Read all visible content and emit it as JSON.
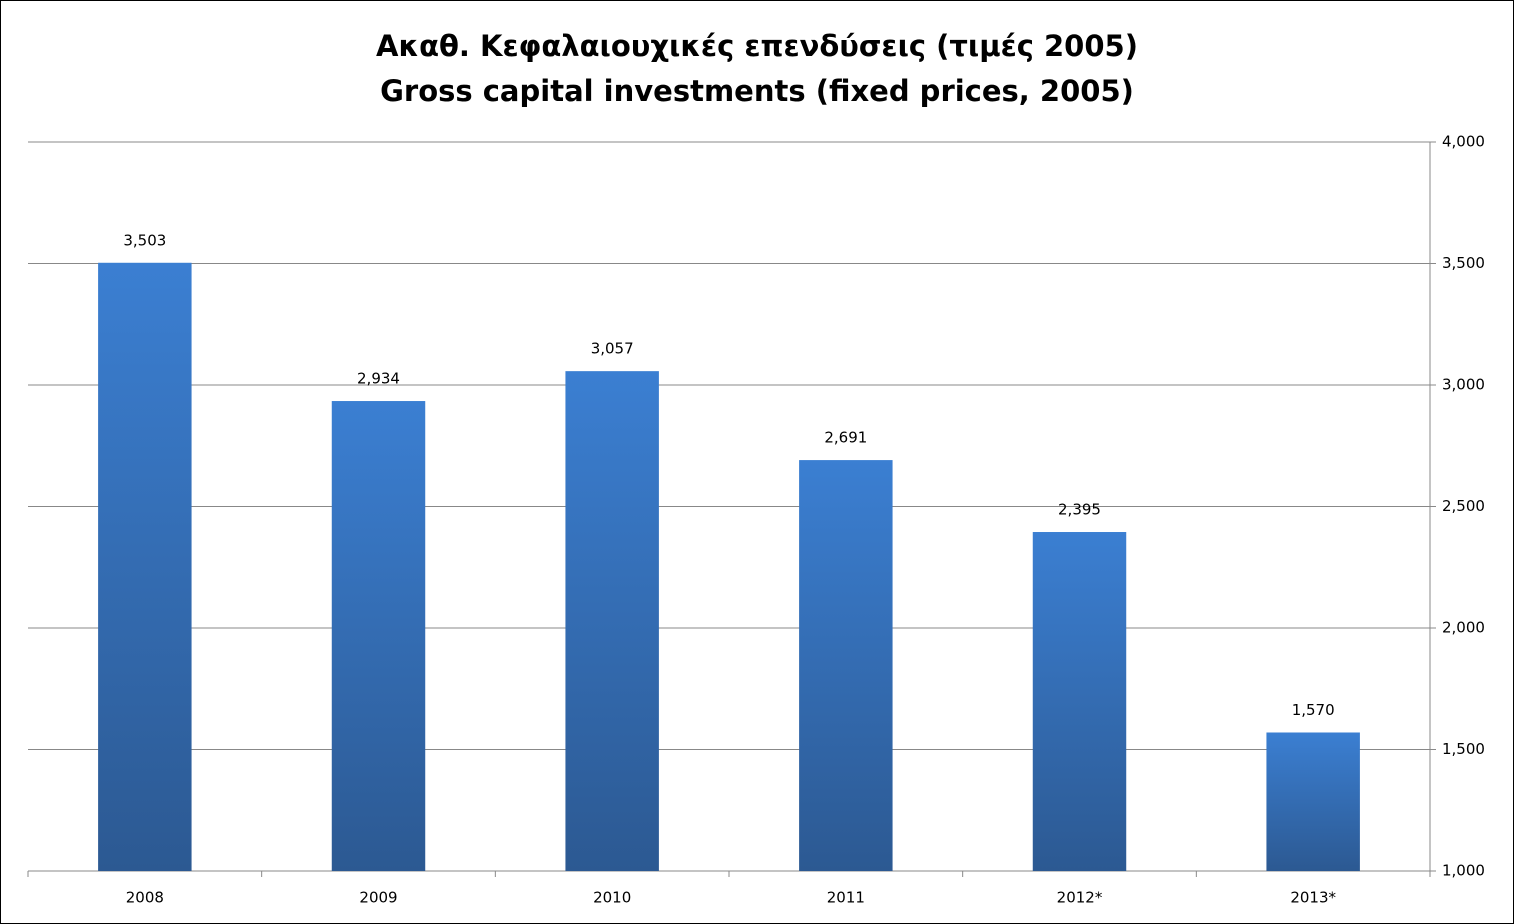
{
  "chart_data": {
    "type": "bar",
    "title": [
      "Ακαθ. Κεφαλαιουχικές επενδύσεις (τιμές 2005)",
      "Gross capital investments (fixed prices, 2005)"
    ],
    "categories": [
      "2008",
      "2009",
      "2010",
      "2011",
      "2012*",
      "2013*"
    ],
    "values": [
      3503,
      2934,
      3057,
      2691,
      2395,
      1570
    ],
    "value_labels": [
      "3,503",
      "2,934",
      "3,057",
      "2,691",
      "2,395",
      "1,570"
    ],
    "color": "#3b7fd2",
    "ylim": [
      1000,
      4000
    ],
    "yticks": [
      {
        "value": 1000,
        "label": "1,000"
      },
      {
        "value": 1500,
        "label": "1,500"
      },
      {
        "value": 2000,
        "label": "2,000"
      },
      {
        "value": 2500,
        "label": "2,500"
      },
      {
        "value": 3000,
        "label": "3,000"
      },
      {
        "value": 3500,
        "label": "3,500"
      },
      {
        "value": 4000,
        "label": "4,000"
      }
    ],
    "grid": true,
    "y_axis_side": "right"
  }
}
